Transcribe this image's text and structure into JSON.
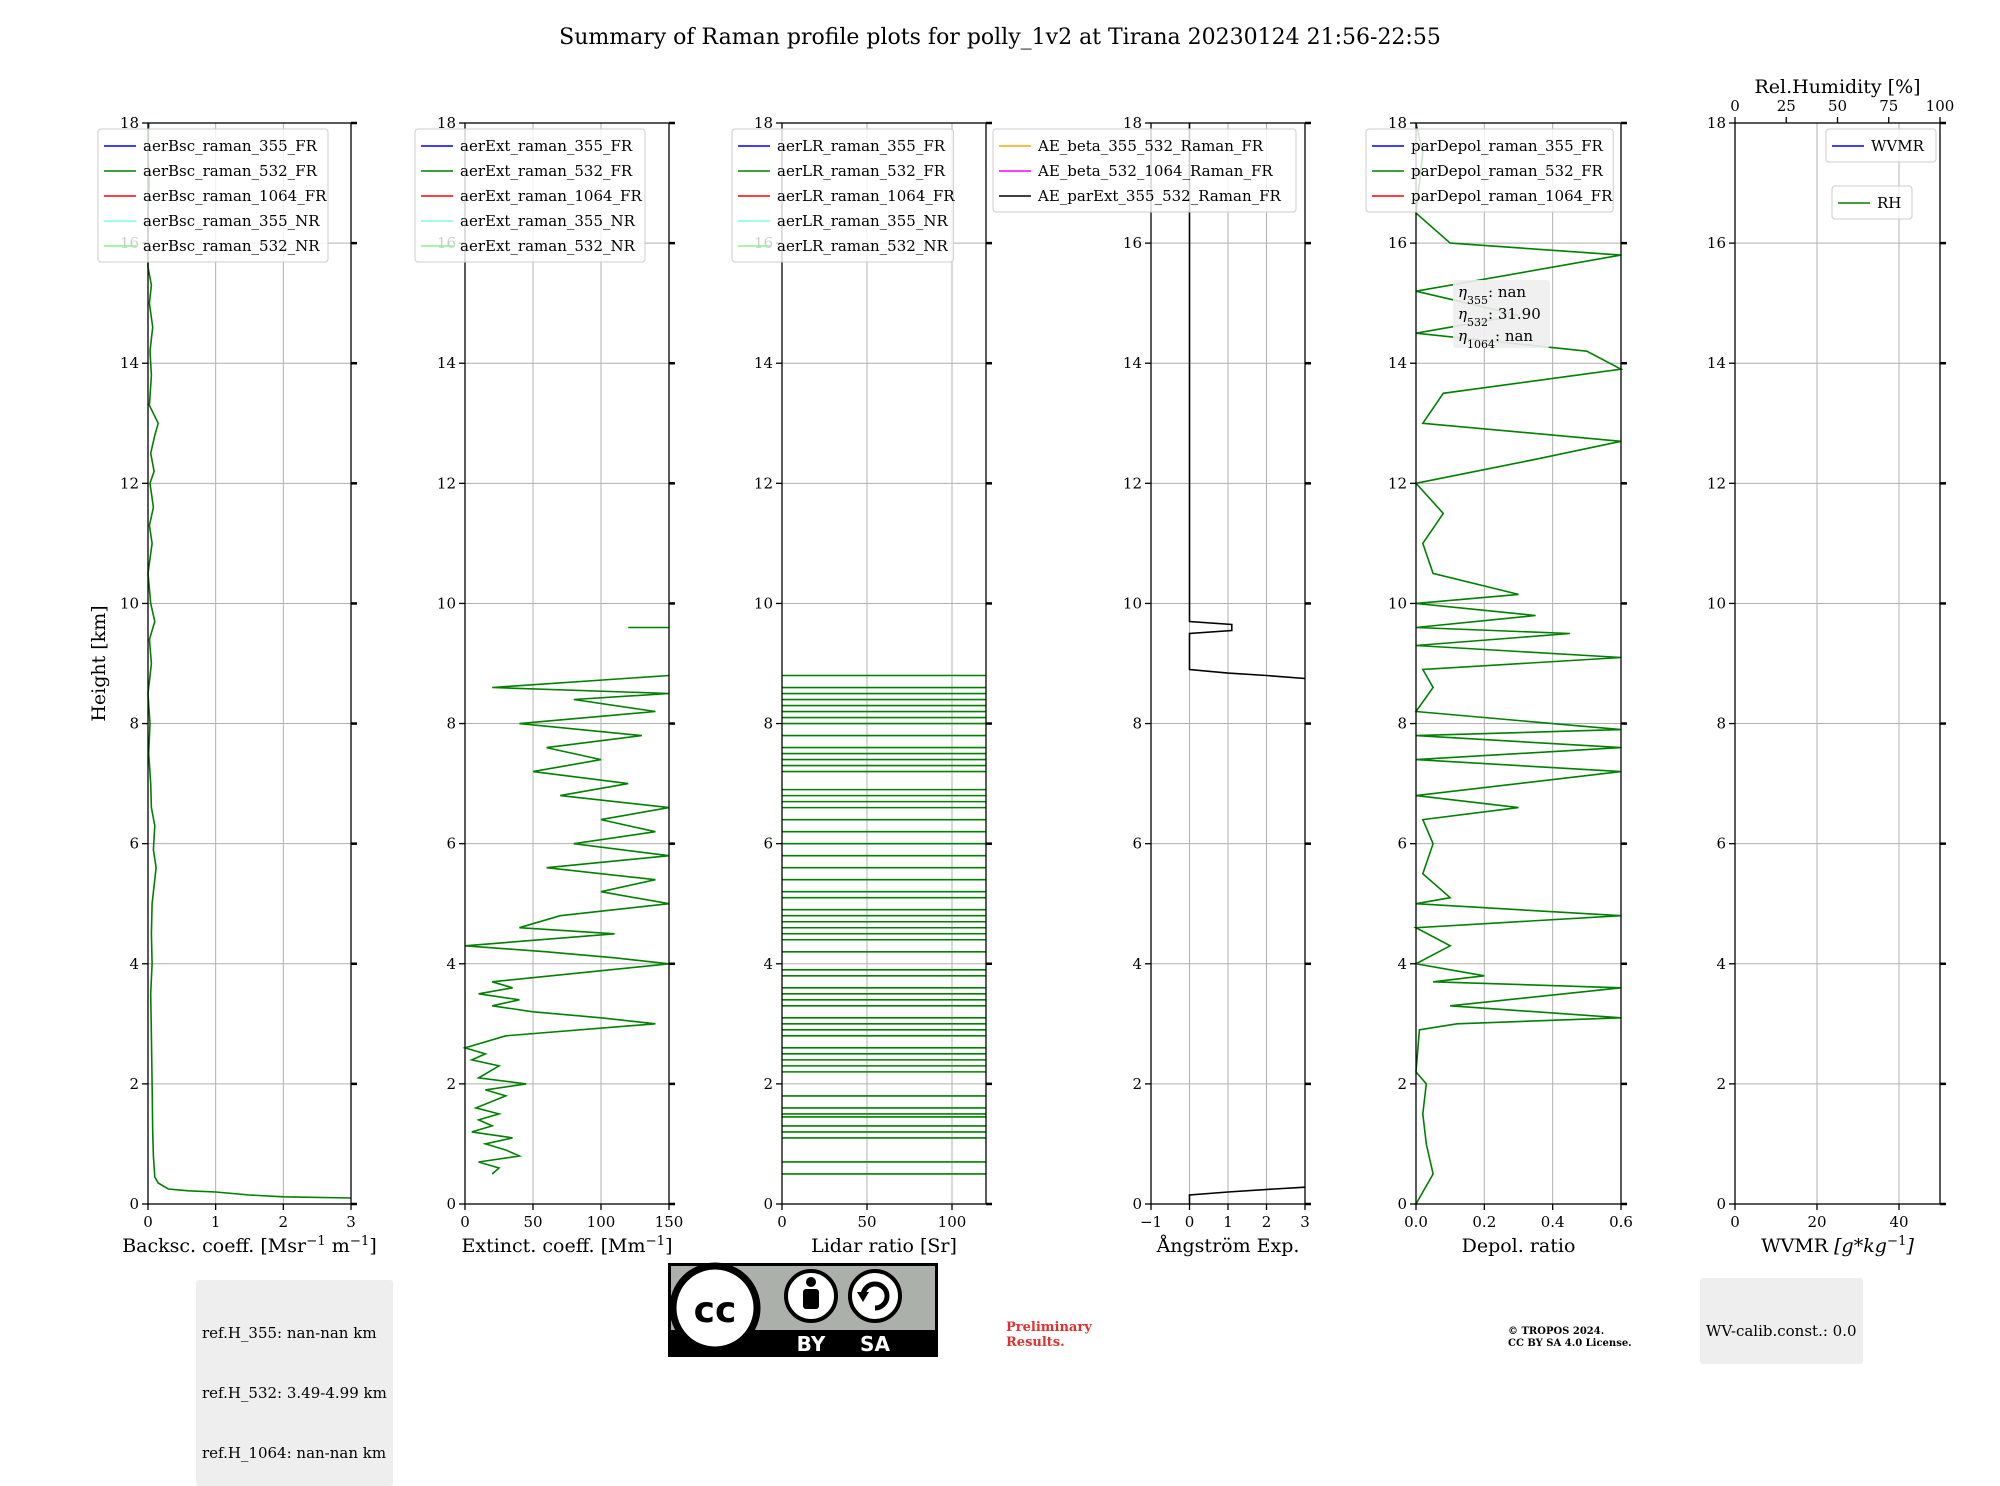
{
  "figure": {
    "title": "Summary of Raman profile plots for polly_1v2 at Tirana 20230124 21:56-22:55",
    "preliminary": [
      "Preliminary",
      "Results."
    ],
    "copyright": [
      "© TROPOS 2024.",
      "CC BY SA 4.0 License."
    ],
    "cc_labels": {
      "by": "BY",
      "sa": "SA"
    },
    "ref_heights": [
      "ref.H_355: nan-nan km",
      "ref.H_532: 3.49-4.99 km",
      "ref.H_1064: nan-nan km"
    ],
    "wv_calib": "WV-calib.const.: 0.0",
    "eta": [
      {
        "sym": "η",
        "sub": "355",
        "val": ": nan"
      },
      {
        "sym": "η",
        "sub": "532",
        "val": ": 31.90"
      },
      {
        "sym": "η",
        "sub": "1064",
        "val": ": nan"
      }
    ],
    "colors": {
      "blue": "#0000ff",
      "green": "#008000",
      "red": "#ff0000",
      "cyan": "#7fffd4",
      "lightgreen": "#90ee90",
      "orange": "#ffa500",
      "magenta": "#ff00ff",
      "black": "#000000"
    }
  },
  "chart_data": [
    {
      "type": "line",
      "id": "backscatter",
      "xlabel": "Backsc. coeff. [Msr$^{-1}$ m$^{-1}$]",
      "ylabel": "Height [km]",
      "xlim": [
        0,
        3
      ],
      "ylim": [
        0,
        18
      ],
      "xticks": [
        0,
        1,
        2,
        3
      ],
      "yticks": [
        0,
        2,
        4,
        6,
        8,
        10,
        12,
        14,
        16,
        18
      ],
      "grid": true,
      "legend_placement": "upper-left",
      "legend": [
        {
          "name": "aerBsc_raman_355_FR",
          "color": "#0000ff"
        },
        {
          "name": "aerBsc_raman_532_FR",
          "color": "#008000"
        },
        {
          "name": "aerBsc_raman_1064_FR",
          "color": "#ff0000"
        },
        {
          "name": "aerBsc_raman_355_NR",
          "color": "#7fffd4"
        },
        {
          "name": "aerBsc_raman_532_NR",
          "color": "#90ee90"
        }
      ],
      "series": [
        {
          "name": "aerBsc_raman_532_FR",
          "color": "#008000",
          "points": [
            [
              3.0,
              0.1
            ],
            [
              2.0,
              0.12
            ],
            [
              1.5,
              0.15
            ],
            [
              1.0,
              0.2
            ],
            [
              0.6,
              0.22
            ],
            [
              0.3,
              0.25
            ],
            [
              0.15,
              0.35
            ],
            [
              0.1,
              0.45
            ],
            [
              0.08,
              0.8
            ],
            [
              0.07,
              1.2
            ],
            [
              0.06,
              2.0
            ],
            [
              0.05,
              2.8
            ],
            [
              0.04,
              3.5
            ],
            [
              0.06,
              4.0
            ],
            [
              0.05,
              4.5
            ],
            [
              0.06,
              5.0
            ],
            [
              0.09,
              5.3
            ],
            [
              0.12,
              5.6
            ],
            [
              0.08,
              5.9
            ],
            [
              0.1,
              6.3
            ],
            [
              0.05,
              6.6
            ],
            [
              0.04,
              7.0
            ],
            [
              0.01,
              7.5
            ],
            [
              0.03,
              8.0
            ],
            [
              0.0,
              8.5
            ],
            [
              0.05,
              9.0
            ],
            [
              0.02,
              9.4
            ],
            [
              0.1,
              9.7
            ],
            [
              0.04,
              10.0
            ],
            [
              0.0,
              10.5
            ],
            [
              0.06,
              11.0
            ],
            [
              0.02,
              11.3
            ],
            [
              0.08,
              11.6
            ],
            [
              0.03,
              12.0
            ],
            [
              0.09,
              12.2
            ],
            [
              0.04,
              12.5
            ],
            [
              0.1,
              12.8
            ],
            [
              0.15,
              13.0
            ],
            [
              0.02,
              13.3
            ],
            [
              0.05,
              13.8
            ],
            [
              0.03,
              14.2
            ],
            [
              0.07,
              14.6
            ],
            [
              0.02,
              15.0
            ],
            [
              0.05,
              15.3
            ],
            [
              0.0,
              15.6
            ],
            [
              0.0,
              16.5
            ],
            [
              0.02,
              17.0
            ],
            [
              0.0,
              17.5
            ],
            [
              0.01,
              18.0
            ]
          ]
        }
      ]
    },
    {
      "type": "line",
      "id": "extinction",
      "xlabel": "Extinct. coeff. [Mm$^{-1}$]",
      "xlim": [
        0,
        150
      ],
      "ylim": [
        0,
        18
      ],
      "xticks": [
        0,
        50,
        100,
        150
      ],
      "yticks": [
        0,
        2,
        4,
        6,
        8,
        10,
        12,
        14,
        16,
        18
      ],
      "grid": true,
      "legend_placement": "upper-left",
      "legend": [
        {
          "name": "aerExt_raman_355_FR",
          "color": "#0000ff"
        },
        {
          "name": "aerExt_raman_532_FR",
          "color": "#008000"
        },
        {
          "name": "aerExt_raman_1064_FR",
          "color": "#ff0000"
        },
        {
          "name": "aerExt_raman_355_NR",
          "color": "#7fffd4"
        },
        {
          "name": "aerExt_raman_532_NR",
          "color": "#90ee90"
        }
      ],
      "series": [
        {
          "name": "aerExt_raman_532_FR",
          "color": "#008000",
          "points": [
            [
              20,
              0.5
            ],
            [
              25,
              0.6
            ],
            [
              10,
              0.7
            ],
            [
              40,
              0.8
            ],
            [
              30,
              0.9
            ],
            [
              15,
              1.0
            ],
            [
              35,
              1.1
            ],
            [
              5,
              1.2
            ],
            [
              20,
              1.3
            ],
            [
              10,
              1.4
            ],
            [
              25,
              1.5
            ],
            [
              8,
              1.6
            ],
            [
              30,
              1.8
            ],
            [
              15,
              1.9
            ],
            [
              45,
              2.0
            ],
            [
              10,
              2.1
            ],
            [
              25,
              2.3
            ],
            [
              5,
              2.4
            ],
            [
              15,
              2.5
            ],
            [
              0,
              2.6
            ],
            [
              30,
              2.8
            ],
            [
              140,
              3.0
            ],
            [
              100,
              3.1
            ],
            [
              50,
              3.2
            ],
            [
              20,
              3.3
            ],
            [
              40,
              3.4
            ],
            [
              10,
              3.5
            ],
            [
              35,
              3.6
            ],
            [
              20,
              3.7
            ],
            [
              150,
              4.0
            ],
            [
              110,
              4.1
            ],
            [
              60,
              4.2
            ],
            [
              0,
              4.3
            ],
            [
              110,
              4.5
            ],
            [
              40,
              4.6
            ],
            [
              70,
              4.8
            ],
            [
              150,
              5.0
            ],
            [
              100,
              5.2
            ],
            [
              140,
              5.4
            ],
            [
              60,
              5.6
            ],
            [
              150,
              5.8
            ],
            [
              80,
              6.0
            ],
            [
              140,
              6.2
            ],
            [
              100,
              6.4
            ],
            [
              150,
              6.6
            ],
            [
              70,
              6.8
            ],
            [
              120,
              7.0
            ],
            [
              50,
              7.2
            ],
            [
              100,
              7.4
            ],
            [
              60,
              7.6
            ],
            [
              130,
              7.8
            ],
            [
              40,
              8.0
            ],
            [
              140,
              8.2
            ],
            [
              80,
              8.4
            ],
            [
              150,
              8.5
            ],
            [
              20,
              8.6
            ],
            [
              150,
              8.8
            ]
          ]
        },
        {
          "name": "aerExt_raman_532_FR_upper",
          "color": "#008000",
          "points": [
            [
              120,
              9.6
            ],
            [
              150,
              9.6
            ]
          ]
        }
      ]
    },
    {
      "type": "line",
      "id": "lidar_ratio",
      "xlabel": "Lidar ratio [Sr]",
      "xlim": [
        0,
        120
      ],
      "ylim": [
        0,
        18
      ],
      "xticks": [
        0,
        50,
        100
      ],
      "yticks": [
        0,
        2,
        4,
        6,
        8,
        10,
        12,
        14,
        16,
        18
      ],
      "grid": true,
      "legend_placement": "upper-left",
      "legend": [
        {
          "name": "aerLR_raman_355_FR",
          "color": "#0000ff"
        },
        {
          "name": "aerLR_raman_532_FR",
          "color": "#008000"
        },
        {
          "name": "aerLR_raman_1064_FR",
          "color": "#ff0000"
        },
        {
          "name": "aerLR_raman_355_NR",
          "color": "#7fffd4"
        },
        {
          "name": "aerLR_raman_532_NR",
          "color": "#90ee90"
        }
      ],
      "hlines_green": [
        0.5,
        0.7,
        1.1,
        1.2,
        1.3,
        1.45,
        1.5,
        1.6,
        1.8,
        2.2,
        2.3,
        2.4,
        2.5,
        2.6,
        2.8,
        2.9,
        3.0,
        3.1,
        3.3,
        3.4,
        3.5,
        3.6,
        3.8,
        3.9,
        4.2,
        4.4,
        4.5,
        4.6,
        4.7,
        4.8,
        4.9,
        5.1,
        5.2,
        5.4,
        5.6,
        5.8,
        6.0,
        6.2,
        6.4,
        6.6,
        6.7,
        6.8,
        6.9,
        7.2,
        7.3,
        7.4,
        7.5,
        7.6,
        7.8,
        8.0,
        8.1,
        8.2,
        8.3,
        8.4,
        8.5,
        8.6,
        8.8
      ]
    },
    {
      "type": "line",
      "id": "angstrom",
      "xlabel": "Ångström Exp.",
      "xlim": [
        -1,
        3
      ],
      "ylim": [
        0,
        18
      ],
      "xticks": [
        -1,
        0,
        1,
        2,
        3
      ],
      "yticks": [
        0,
        2,
        4,
        6,
        8,
        10,
        12,
        14,
        16,
        18
      ],
      "grid": true,
      "legend_placement": "upper-left",
      "legend": [
        {
          "name": "AE_beta_355_532_Raman_FR",
          "color": "#ffa500"
        },
        {
          "name": "AE_beta_532_1064_Raman_FR",
          "color": "#ff00ff"
        },
        {
          "name": "AE_parExt_355_532_Raman_FR",
          "color": "#000000"
        }
      ],
      "series": [
        {
          "name": "AE_parExt_355_532_Raman_FR",
          "color": "#000000",
          "points": [
            [
              0,
              0.0
            ],
            [
              0,
              0.15
            ],
            [
              1.0,
              0.2
            ],
            [
              2.2,
              0.25
            ],
            [
              3.0,
              0.28
            ]
          ]
        },
        {
          "name": "AE_parExt_355_532_Raman_FR_upper",
          "color": "#000000",
          "points": [
            [
              3.0,
              8.75
            ],
            [
              2.0,
              8.8
            ],
            [
              1.0,
              8.84
            ],
            [
              0,
              8.9
            ],
            [
              0,
              9.5
            ],
            [
              1.1,
              9.55
            ],
            [
              1.1,
              9.65
            ],
            [
              0,
              9.7
            ],
            [
              0,
              18
            ]
          ]
        }
      ]
    },
    {
      "type": "line",
      "id": "depol",
      "xlabel": "Depol. ratio",
      "xlim": [
        0,
        0.6
      ],
      "ylim": [
        0,
        18
      ],
      "xticks": [
        0.0,
        0.2,
        0.4,
        0.6
      ],
      "yticks": [
        0,
        2,
        4,
        6,
        8,
        10,
        12,
        14,
        16,
        18
      ],
      "grid": true,
      "legend_placement": "upper-left",
      "legend": [
        {
          "name": "parDepol_raman_355_FR",
          "color": "#0000ff"
        },
        {
          "name": "parDepol_raman_532_FR",
          "color": "#008000"
        },
        {
          "name": "parDepol_raman_1064_FR",
          "color": "#ff0000"
        }
      ],
      "series": [
        {
          "name": "parDepol_raman_532_FR",
          "color": "#008000",
          "points": [
            [
              0.0,
              0.0
            ],
            [
              0.05,
              0.5
            ],
            [
              0.03,
              1.0
            ],
            [
              0.02,
              1.5
            ],
            [
              0.03,
              2.0
            ],
            [
              0.0,
              2.2
            ],
            [
              0.01,
              2.9
            ],
            [
              0.12,
              3.0
            ],
            [
              0.6,
              3.1
            ],
            [
              0.1,
              3.3
            ],
            [
              0.6,
              3.6
            ],
            [
              0.05,
              3.7
            ],
            [
              0.2,
              3.8
            ],
            [
              0.0,
              4.0
            ],
            [
              0.1,
              4.3
            ],
            [
              0.0,
              4.6
            ],
            [
              0.6,
              4.8
            ],
            [
              0.0,
              5.0
            ],
            [
              0.1,
              5.1
            ],
            [
              0.02,
              5.5
            ],
            [
              0.05,
              6.0
            ],
            [
              0.02,
              6.4
            ],
            [
              0.3,
              6.6
            ],
            [
              0.0,
              6.8
            ],
            [
              0.6,
              7.2
            ],
            [
              0.0,
              7.4
            ],
            [
              0.6,
              7.6
            ],
            [
              0.0,
              7.8
            ],
            [
              0.6,
              7.9
            ],
            [
              0.0,
              8.2
            ],
            [
              0.05,
              8.6
            ],
            [
              0.02,
              8.9
            ],
            [
              0.6,
              9.1
            ],
            [
              0.0,
              9.3
            ],
            [
              0.45,
              9.5
            ],
            [
              0.0,
              9.6
            ],
            [
              0.35,
              9.8
            ],
            [
              0.0,
              10.0
            ],
            [
              0.3,
              10.15
            ],
            [
              0.05,
              10.5
            ],
            [
              0.02,
              11.0
            ],
            [
              0.08,
              11.5
            ],
            [
              0.0,
              12.0
            ],
            [
              0.35,
              12.4
            ],
            [
              0.6,
              12.7
            ],
            [
              0.02,
              13.0
            ],
            [
              0.08,
              13.5
            ],
            [
              0.6,
              13.9
            ],
            [
              0.5,
              14.2
            ],
            [
              0.0,
              14.5
            ],
            [
              0.3,
              14.8
            ],
            [
              0.0,
              15.2
            ],
            [
              0.6,
              15.8
            ],
            [
              0.1,
              16.0
            ],
            [
              0.0,
              16.5
            ],
            [
              0.02,
              17.5
            ],
            [
              0.0,
              18.0
            ]
          ]
        }
      ]
    },
    {
      "type": "line",
      "id": "wvmr",
      "xlabel": "WVMR $[g*kg^{-1}]$",
      "top_xlabel": "Rel.Humidity [%]",
      "xlim": [
        0,
        50
      ],
      "ylim": [
        0,
        18
      ],
      "xticks": [
        0,
        20,
        40
      ],
      "top_xticks": [
        0,
        25,
        50,
        75,
        100
      ],
      "yticks": [
        0,
        2,
        4,
        6,
        8,
        10,
        12,
        14,
        16,
        18
      ],
      "grid": true,
      "legend_placement": "upper-right",
      "legend": [
        {
          "name": "WVMR",
          "color": "#0000ff"
        }
      ],
      "legend2": [
        {
          "name": "RH",
          "color": "#008000"
        }
      ],
      "series": []
    }
  ]
}
